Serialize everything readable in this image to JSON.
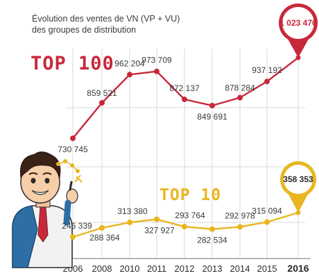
{
  "title_line1": "Évolution des ventes de VN (VP + VU)",
  "title_line2": "des groupes de distribution",
  "colors": {
    "top100": "#c8283a",
    "top10": "#e8b61f",
    "axis": "#8a8a8a",
    "grid": "#d9d9d9"
  },
  "chart_data": {
    "type": "line",
    "categories": [
      "2006",
      "2008",
      "2010",
      "2011",
      "2012",
      "2013",
      "2014",
      "2015",
      "2016"
    ],
    "series": [
      {
        "name": "TOP 100",
        "values": [
          730745,
          859521,
          962204,
          973709,
          872137,
          849691,
          878284,
          937192,
          1023476
        ],
        "labels": [
          "730 745",
          "859 521",
          "962 204",
          "973 709",
          "872 137",
          "849 691",
          "878 284",
          "937 192",
          "1 023 476"
        ]
      },
      {
        "name": "TOP 10",
        "values": [
          246339,
          288364,
          313380,
          327927,
          293764,
          282534,
          292978,
          315094,
          358353
        ],
        "labels": [
          "246 339",
          "288 364",
          "313 380",
          "327 927",
          "293 764",
          "282 534",
          "292 978",
          "315 094",
          "358 353"
        ]
      }
    ],
    "ylim": [
      0,
      1100000
    ],
    "grid": true
  }
}
